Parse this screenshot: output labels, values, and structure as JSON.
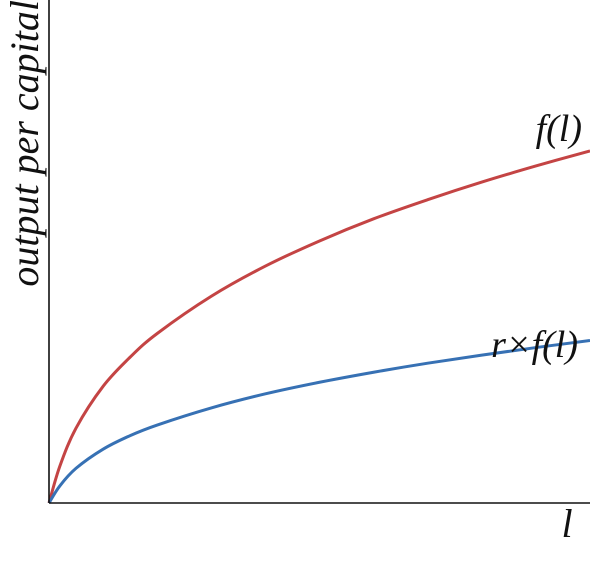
{
  "chart_data": {
    "type": "line",
    "title": "",
    "xlabel": "l",
    "ylabel": "output per capital",
    "xlim": [
      0,
      1
    ],
    "ylim": [
      0,
      1
    ],
    "grid": false,
    "x": [
      0,
      0.02,
      0.05,
      0.1,
      0.15,
      0.2,
      0.3,
      0.4,
      0.5,
      0.6,
      0.7,
      0.8,
      0.9,
      1.0
    ],
    "series": [
      {
        "name": "f(l)",
        "color": "#c44444",
        "values": [
          0,
          0.073,
          0.149,
          0.232,
          0.29,
          0.337,
          0.411,
          0.471,
          0.521,
          0.565,
          0.603,
          0.638,
          0.67,
          0.7
        ]
      },
      {
        "name": "r×f(l)",
        "color": "#3771b4",
        "values": [
          0,
          0.034,
          0.069,
          0.107,
          0.134,
          0.155,
          0.189,
          0.217,
          0.24,
          0.26,
          0.278,
          0.294,
          0.309,
          0.323
        ]
      }
    ]
  }
}
